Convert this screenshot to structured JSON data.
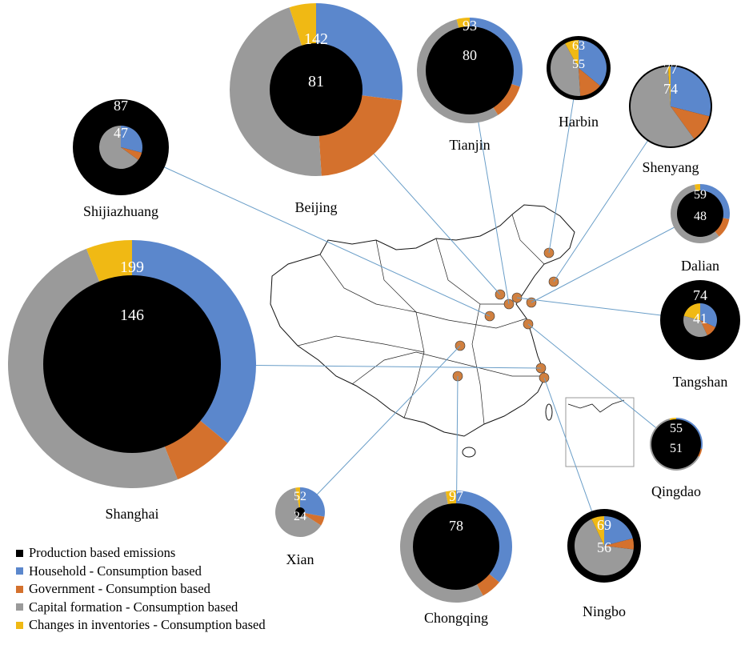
{
  "chart_data": {
    "type": "pie",
    "categories": [
      "Household - Consumption based",
      "Government - Consumption based",
      "Capital formation - Consumption based",
      "Changes in inventories - Consumption based"
    ],
    "legend": {
      "placement": "bottom-left",
      "items": [
        {
          "label": "Production based emissions",
          "color": "#000000"
        },
        {
          "label": "Household - Consumption based",
          "color": "#5b87cc"
        },
        {
          "label": "Government - Consumption based",
          "color": "#d4712d"
        },
        {
          "label": "Capital formation - Consumption based",
          "color": "#9a9a9a"
        },
        {
          "label": "Changes in inventories - Consumption based",
          "color": "#f0b914"
        }
      ]
    },
    "cities": [
      {
        "name": "Beijing",
        "production": "81",
        "consumption": "142",
        "consumption_shares": [
          0.27,
          0.22,
          0.46,
          0.05
        ]
      },
      {
        "name": "Shijiazhuang",
        "production": "87",
        "consumption": "47",
        "consumption_shares": [
          0.29,
          0.06,
          0.65,
          0.0
        ]
      },
      {
        "name": "Tianjin",
        "production": "80",
        "consumption": "93",
        "consumption_shares": [
          0.3,
          0.11,
          0.55,
          0.04
        ]
      },
      {
        "name": "Harbin",
        "production": "63",
        "consumption": "55",
        "consumption_shares": [
          0.36,
          0.13,
          0.43,
          0.08
        ]
      },
      {
        "name": "Shenyang",
        "production": "77",
        "consumption": "74",
        "consumption_shares": [
          0.29,
          0.11,
          0.59,
          0.01
        ]
      },
      {
        "name": "Dalian",
        "production": "48",
        "consumption": "59",
        "consumption_shares": [
          0.28,
          0.11,
          0.58,
          0.03
        ]
      },
      {
        "name": "Tangshan",
        "production": "74",
        "consumption": "41",
        "consumption_shares": [
          0.32,
          0.11,
          0.36,
          0.21
        ]
      },
      {
        "name": "Qingdao",
        "production": "51",
        "consumption": "55",
        "consumption_shares": [
          0.28,
          0.05,
          0.63,
          0.04
        ]
      },
      {
        "name": "Shanghai",
        "production": "146",
        "consumption": "199",
        "consumption_shares": [
          0.36,
          0.08,
          0.5,
          0.06
        ]
      },
      {
        "name": "Xian",
        "production": "24",
        "consumption": "52",
        "consumption_shares": [
          0.28,
          0.06,
          0.63,
          0.03
        ]
      },
      {
        "name": "Chongqing",
        "production": "78",
        "consumption": "97",
        "consumption_shares": [
          0.36,
          0.06,
          0.55,
          0.03
        ]
      },
      {
        "name": "Ningbo",
        "production": "69",
        "consumption": "56",
        "consumption_shares": [
          0.21,
          0.06,
          0.66,
          0.07
        ]
      }
    ],
    "colors": {
      "production": "#000000",
      "household": "#5b87cc",
      "government": "#d4712d",
      "capital": "#9a9a9a",
      "inventories": "#f0b914",
      "highlight_city": "#d08040",
      "connector": "#6a9ec8"
    }
  }
}
